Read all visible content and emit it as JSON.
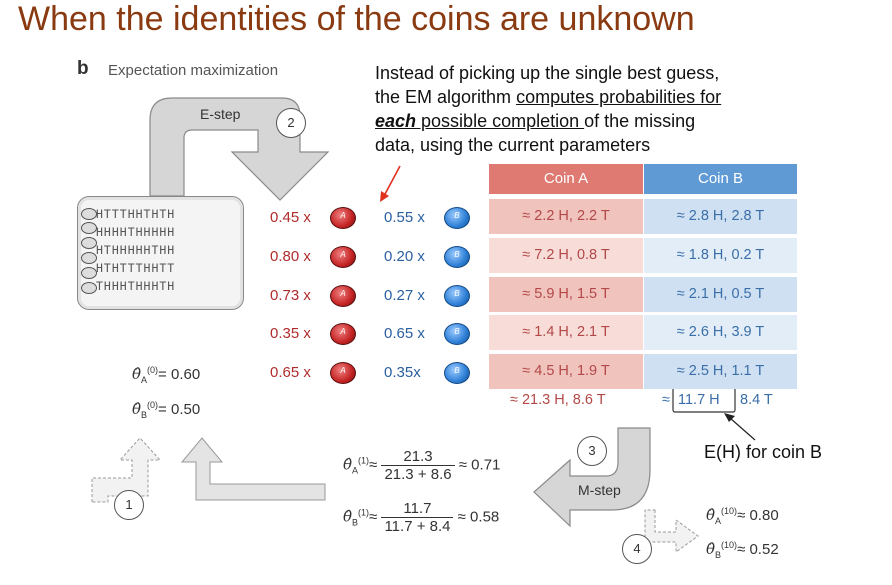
{
  "title": "When the identities of the coins are unknown",
  "panel": {
    "letter": "b",
    "name": "Expectation maximization"
  },
  "callout": {
    "line1": "Instead of picking up the single best guess,",
    "line2_pre": "the EM algorithm ",
    "line2_u": "computes probabilities for",
    "line3_bi": "each",
    "line3_u": " possible completion ",
    "line3_post": "of the missing",
    "line4": "data, using the current parameters"
  },
  "estep_label": "E-step",
  "mstep_label": "M-step",
  "step_numbers": [
    "1",
    "2",
    "3",
    "4"
  ],
  "sequences": [
    "HTTTHHTHTH",
    "HHHHTHHHHH",
    "HTHHHHHTHH",
    "HTHTTTHHTT",
    "THHHTHHHTH"
  ],
  "coin_letters": {
    "a": "A",
    "b": "B"
  },
  "rows": [
    {
      "pa": "0.45 x",
      "pb": "0.55 x",
      "a": "≈ 2.2 H, 2.2 T",
      "b": "≈ 2.8 H, 2.8 T"
    },
    {
      "pa": "0.80 x",
      "pb": "0.20 x",
      "a": "≈ 7.2 H, 0.8 T",
      "b": "≈ 1.8 H, 0.2 T"
    },
    {
      "pa": "0.73 x",
      "pb": "0.27 x",
      "a": "≈ 5.9 H, 1.5 T",
      "b": "≈ 2.1 H, 0.5 T"
    },
    {
      "pa": "0.35 x",
      "pb": "0.65 x",
      "a": "≈ 1.4 H, 2.1 T",
      "b": "≈ 2.6 H, 3.9 T"
    },
    {
      "pa": "0.65 x",
      "pb": "0.35x",
      "a": "≈ 4.5 H, 1.9 T",
      "b": "≈ 2.5 H, 1.1 T"
    }
  ],
  "table_headers": {
    "a": "Coin A",
    "b": "Coin B"
  },
  "totals": {
    "a": "≈ 21.3 H, 8.6 T",
    "b_approx": "≈",
    "b_h": "11.7 H",
    "b_t": "8.4 T"
  },
  "eh_label": "E(H) for coin B",
  "init": {
    "a_val": "= 0.60",
    "b_val": "= 0.50",
    "sup": "(0)"
  },
  "update1": {
    "sup": "(1)",
    "a_num": "21.3",
    "a_den": "21.3 + 8.6",
    "a_res": "≈ 0.71",
    "b_num": "11.7",
    "b_den": "11.7 + 8.4",
    "b_res": "≈ 0.58"
  },
  "final": {
    "sup": "(10)",
    "a_res": "≈ 0.80",
    "b_res": "≈ 0.52"
  },
  "symbols": {
    "theta": "θ̂",
    "approx": "≈",
    "sub_a": "A",
    "sub_b": "B"
  }
}
